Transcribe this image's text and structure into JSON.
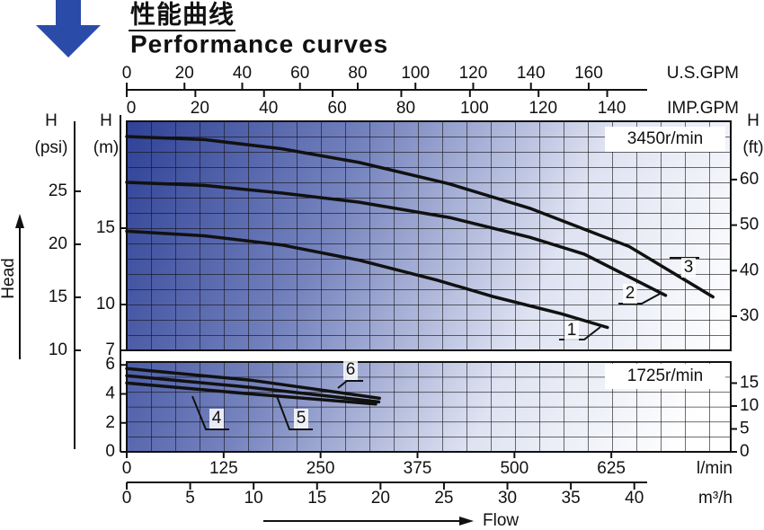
{
  "chart_data": {
    "type": "line",
    "title": "性能曲线",
    "subtitle": "Performance curves",
    "x_label": "Flow",
    "y_label": "Head",
    "top_axes": [
      {
        "label": "U.S.GPM",
        "xlim": [
          0,
          209.2
        ],
        "xticks": [
          0,
          20,
          40,
          60,
          80,
          100,
          120,
          140,
          160
        ]
      },
      {
        "label": "IMP.GPM",
        "xlim": [
          0,
          176
        ],
        "xticks": [
          0,
          20,
          40,
          60,
          80,
          100,
          120,
          140
        ]
      }
    ],
    "bottom_axes": [
      {
        "label": "l/min",
        "xlim": [
          0,
          779
        ],
        "xticks": [
          0,
          125,
          250,
          375,
          500,
          625
        ]
      },
      {
        "label": "m³/h",
        "xlim": [
          0,
          47.6
        ],
        "xticks": [
          0,
          5,
          10,
          15,
          20,
          25,
          30,
          35,
          40
        ]
      }
    ],
    "panels": [
      {
        "speed": "3450r/min",
        "y_label": [
          "H",
          "(m)"
        ],
        "ylim": [
          7,
          22
        ],
        "yticks": [
          7,
          10,
          15
        ],
        "psi_axis": {
          "label": [
            "H",
            "(psi)"
          ],
          "ylim": [
            10,
            31.6
          ],
          "yticks": [
            10,
            15,
            20,
            25
          ]
        },
        "y2_label": [
          "H",
          "(ft)"
        ],
        "y2lim": [
          22.5,
          72.8
        ],
        "y2ticks": [
          30,
          40,
          50,
          60
        ],
        "series": [
          {
            "name": "1",
            "color": "#111111",
            "x": [
              0,
              100,
              200,
              300,
              400,
              474,
              560,
              620
            ],
            "values": [
              14.8,
              14.5,
              13.9,
              12.9,
              11.6,
              10.5,
              9.4,
              8.5
            ]
          },
          {
            "name": "2",
            "color": "#111111",
            "x": [
              0,
              100,
              200,
              300,
              416,
              520,
              590,
              695
            ],
            "values": [
              18.0,
              17.8,
              17.3,
              16.7,
              15.7,
              14.4,
              13.3,
              10.6
            ]
          },
          {
            "name": "3",
            "color": "#111111",
            "x": [
              0,
              100,
              200,
              300,
              416,
              520,
              648,
              756
            ],
            "values": [
              21.0,
              20.8,
              20.2,
              19.3,
              17.9,
              16.3,
              13.8,
              10.5
            ]
          }
        ]
      },
      {
        "speed": "1725r/min",
        "ylim": [
          0,
          6.2
        ],
        "yticks": [
          0,
          2,
          4,
          6
        ],
        "y2lim": [
          0,
          19.6
        ],
        "y2ticks": [
          0,
          5,
          10,
          15
        ],
        "series": [
          {
            "name": "4",
            "color": "#111111",
            "x": [
              0,
              160,
              321
            ],
            "values": [
              4.75,
              4.0,
              3.3
            ]
          },
          {
            "name": "5",
            "color": "#111111",
            "x": [
              0,
              160,
              325
            ],
            "values": [
              5.25,
              4.45,
              3.45
            ]
          },
          {
            "name": "6",
            "color": "#111111",
            "x": [
              0,
              160,
              326
            ],
            "values": [
              5.75,
              4.95,
              3.7
            ]
          }
        ]
      }
    ]
  }
}
